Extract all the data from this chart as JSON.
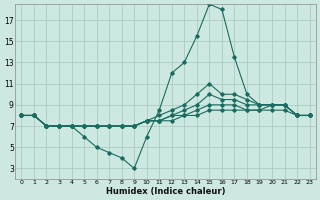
{
  "title": "",
  "xlabel": "Humidex (Indice chaleur)",
  "ylabel": "",
  "background_color": "#cce8e0",
  "grid_color": "#aaccc4",
  "line_color": "#1a6b60",
  "xlim": [
    -0.5,
    23.5
  ],
  "ylim": [
    2.0,
    18.5
  ],
  "xticks": [
    0,
    1,
    2,
    3,
    4,
    5,
    6,
    7,
    8,
    9,
    10,
    11,
    12,
    13,
    14,
    15,
    16,
    17,
    18,
    19,
    20,
    21,
    22,
    23
  ],
  "yticks": [
    3,
    5,
    7,
    9,
    11,
    13,
    15,
    17
  ],
  "curves": [
    {
      "x": [
        0,
        1,
        2,
        3,
        4,
        5,
        6,
        7,
        8,
        9,
        10,
        11,
        12,
        13,
        14,
        15,
        16,
        17,
        18,
        19,
        20,
        21,
        22,
        23
      ],
      "y": [
        8,
        8,
        7,
        7,
        7,
        6,
        5,
        4.5,
        4,
        3,
        6,
        8.5,
        12,
        13,
        15.5,
        18.5,
        18,
        13.5,
        10,
        9,
        9,
        9,
        8,
        8
      ]
    },
    {
      "x": [
        0,
        1,
        2,
        3,
        4,
        5,
        6,
        7,
        8,
        9,
        10,
        11,
        12,
        13,
        14,
        15,
        16,
        17,
        18,
        19,
        20,
        21,
        22,
        23
      ],
      "y": [
        8,
        8,
        7,
        7,
        7,
        7,
        7,
        7,
        7,
        7,
        7.5,
        8,
        8.5,
        9,
        10,
        11,
        10,
        10,
        9.5,
        9,
        9,
        9,
        8,
        8
      ]
    },
    {
      "x": [
        0,
        1,
        2,
        3,
        4,
        5,
        6,
        7,
        8,
        9,
        10,
        11,
        12,
        13,
        14,
        15,
        16,
        17,
        18,
        19,
        20,
        21,
        22,
        23
      ],
      "y": [
        8,
        8,
        7,
        7,
        7,
        7,
        7,
        7,
        7,
        7,
        7.5,
        7.5,
        8,
        8.5,
        9,
        10,
        9.5,
        9.5,
        9,
        9,
        9,
        9,
        8,
        8
      ]
    },
    {
      "x": [
        0,
        1,
        2,
        3,
        4,
        5,
        6,
        7,
        8,
        9,
        10,
        11,
        12,
        13,
        14,
        15,
        16,
        17,
        18,
        19,
        20,
        21,
        22,
        23
      ],
      "y": [
        8,
        8,
        7,
        7,
        7,
        7,
        7,
        7,
        7,
        7,
        7.5,
        7.5,
        8,
        8,
        8.5,
        9,
        9,
        9,
        8.5,
        8.5,
        9,
        9,
        8,
        8
      ]
    },
    {
      "x": [
        0,
        1,
        2,
        3,
        4,
        5,
        6,
        7,
        8,
        9,
        10,
        11,
        12,
        13,
        14,
        15,
        16,
        17,
        18,
        19,
        20,
        21,
        22,
        23
      ],
      "y": [
        8,
        8,
        7,
        7,
        7,
        7,
        7,
        7,
        7,
        7,
        7.5,
        7.5,
        7.5,
        8,
        8,
        8.5,
        8.5,
        8.5,
        8.5,
        8.5,
        8.5,
        8.5,
        8,
        8
      ]
    }
  ]
}
